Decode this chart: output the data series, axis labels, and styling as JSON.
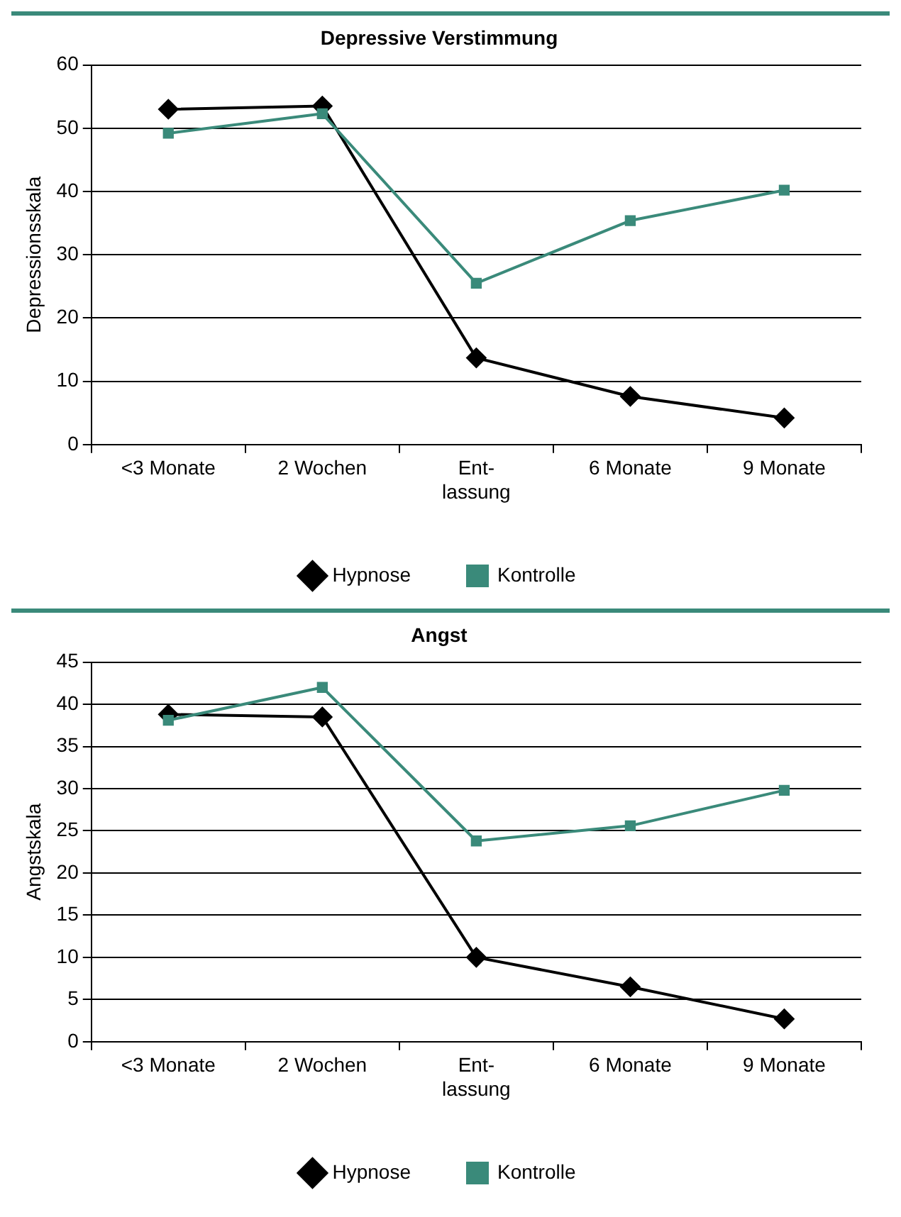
{
  "chart_data": [
    {
      "type": "line",
      "title": "Depressive Verstimmung",
      "ylabel": "Depressionsskala",
      "categories": [
        "<3 Monate",
        "2 Wochen",
        "Ent-\nlassung",
        "6 Monate",
        "9 Monate"
      ],
      "ylim": [
        0,
        60
      ],
      "yticks": [
        0,
        10,
        20,
        30,
        40,
        50,
        60
      ],
      "grid": "y",
      "legend": "bottom",
      "series": [
        {
          "name": "Hypnose",
          "color": "#000000",
          "marker": "diamond",
          "values": [
            53,
            53.5,
            13.7,
            7.6,
            4.2
          ]
        },
        {
          "name": "Kontrolle",
          "color": "#3a8a7a",
          "marker": "square",
          "values": [
            49.2,
            52.3,
            25.5,
            35.4,
            40.2
          ]
        }
      ]
    },
    {
      "type": "line",
      "title": "Angst",
      "ylabel": "Angstskala",
      "categories": [
        "<3 Monate",
        "2 Wochen",
        "Ent-\nlassung",
        "6 Monate",
        "9 Monate"
      ],
      "ylim": [
        0,
        45
      ],
      "yticks": [
        0,
        5,
        10,
        15,
        20,
        25,
        30,
        35,
        40,
        45
      ],
      "grid": "y",
      "legend": "bottom",
      "series": [
        {
          "name": "Hypnose",
          "color": "#000000",
          "marker": "diamond",
          "values": [
            38.8,
            38.5,
            10,
            6.5,
            2.7
          ]
        },
        {
          "name": "Kontrolle",
          "color": "#3a8a7a",
          "marker": "square",
          "values": [
            38.1,
            42,
            23.8,
            25.6,
            29.8
          ]
        }
      ]
    }
  ]
}
